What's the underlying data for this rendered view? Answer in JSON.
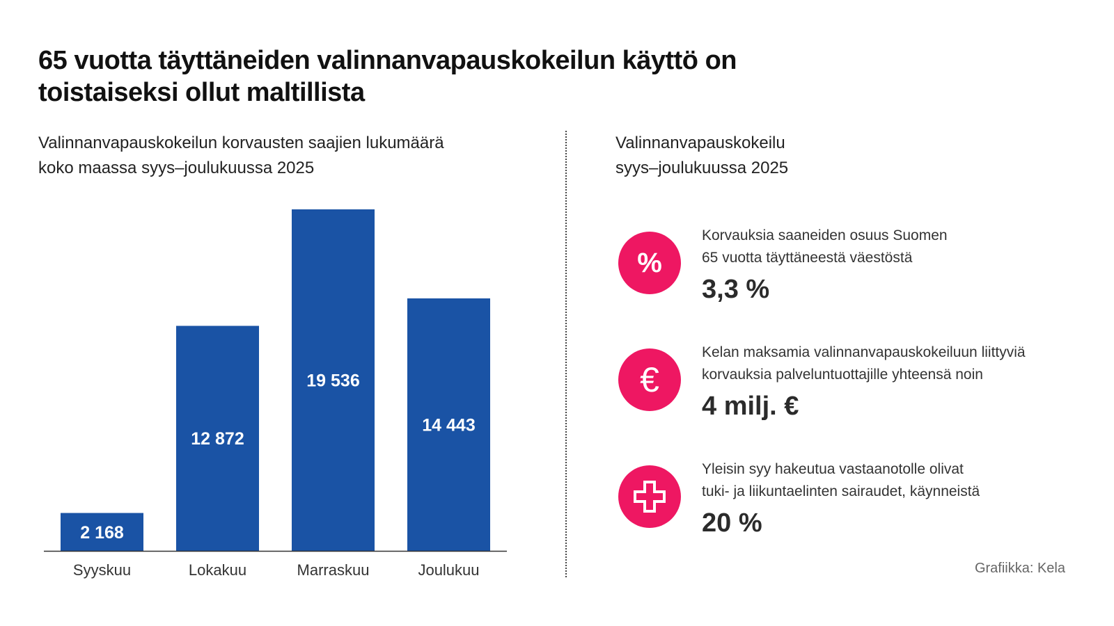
{
  "title": "65 vuotta täyttäneiden valinnanvapauskokeilun käyttö on toistaiseksi ollut maltillista",
  "left_subtitle": [
    "Valinnanvapauskokeilun korvausten saajien lukumäärä",
    "koko maassa syys–joulukuussa 2025"
  ],
  "right_subtitle": [
    "Valinnanvapauskokeilu",
    "syys–joulukuussa 2025"
  ],
  "chart_data": {
    "type": "bar",
    "categories": [
      "Syyskuu",
      "Lokakuu",
      "Marraskuu",
      "Joulukuu"
    ],
    "values": [
      2168,
      12872,
      19536,
      14443
    ],
    "value_labels": [
      "2 168",
      "12 872",
      "19 536",
      "14 443"
    ],
    "xlabel": "",
    "ylabel": "",
    "ylim": [
      0,
      19536
    ],
    "grid": false,
    "bar_color": "#1a53a5"
  },
  "facts": [
    {
      "icon": "percent-icon",
      "text": [
        "Korvauksia saaneiden osuus Suomen",
        "65 vuotta täyttäneestä väestöstä"
      ],
      "value": "3,3 %"
    },
    {
      "icon": "euro-icon",
      "text": [
        "Kelan maksamia valinnanvapauskokeiluun liittyviä",
        "korvauksia palveluntuottajille yhteensä noin"
      ],
      "value": "4 milj. €"
    },
    {
      "icon": "medical-cross-icon",
      "text": [
        "Yleisin syy hakeutua vastaanotolle olivat",
        "tuki- ja liikuntaelinten sairaudet, käynneistä"
      ],
      "value": "20 %"
    }
  ],
  "accent_color": "#ee1762",
  "credit": "Grafiikka: Kela"
}
